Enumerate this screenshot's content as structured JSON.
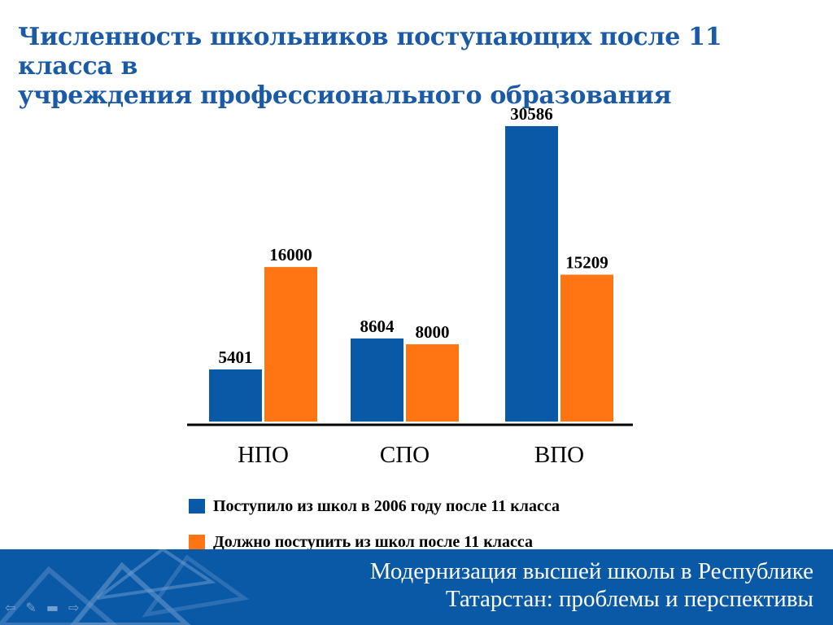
{
  "slide": {
    "title_line1": "Численность школьников поступающих после 11 класса в",
    "title_line2": "учреждения профессионального образования"
  },
  "chart_data": {
    "type": "bar",
    "categories": [
      "НПО",
      "СПО",
      "ВПО"
    ],
    "series": [
      {
        "name": "Поступило из школ в 2006 году после 11 класса",
        "values": [
          5401,
          8604,
          30586
        ],
        "color": "#0a59a7"
      },
      {
        "name": "Должно поступить из школ после 11 класса",
        "values": [
          16000,
          8000,
          15209
        ],
        "color": "#ff7514"
      }
    ],
    "title": "",
    "xlabel": "",
    "ylabel": "",
    "ylim": [
      0,
      30586
    ],
    "grid": false,
    "legend": "bottom"
  },
  "footer": {
    "line1": "Модернизация высшей школы в Республике",
    "line2": "Татарстан: проблемы и перспективы",
    "background": "#0a59a7"
  },
  "nav_icons": [
    "back-icon",
    "pen-icon",
    "menu-icon",
    "forward-icon"
  ]
}
